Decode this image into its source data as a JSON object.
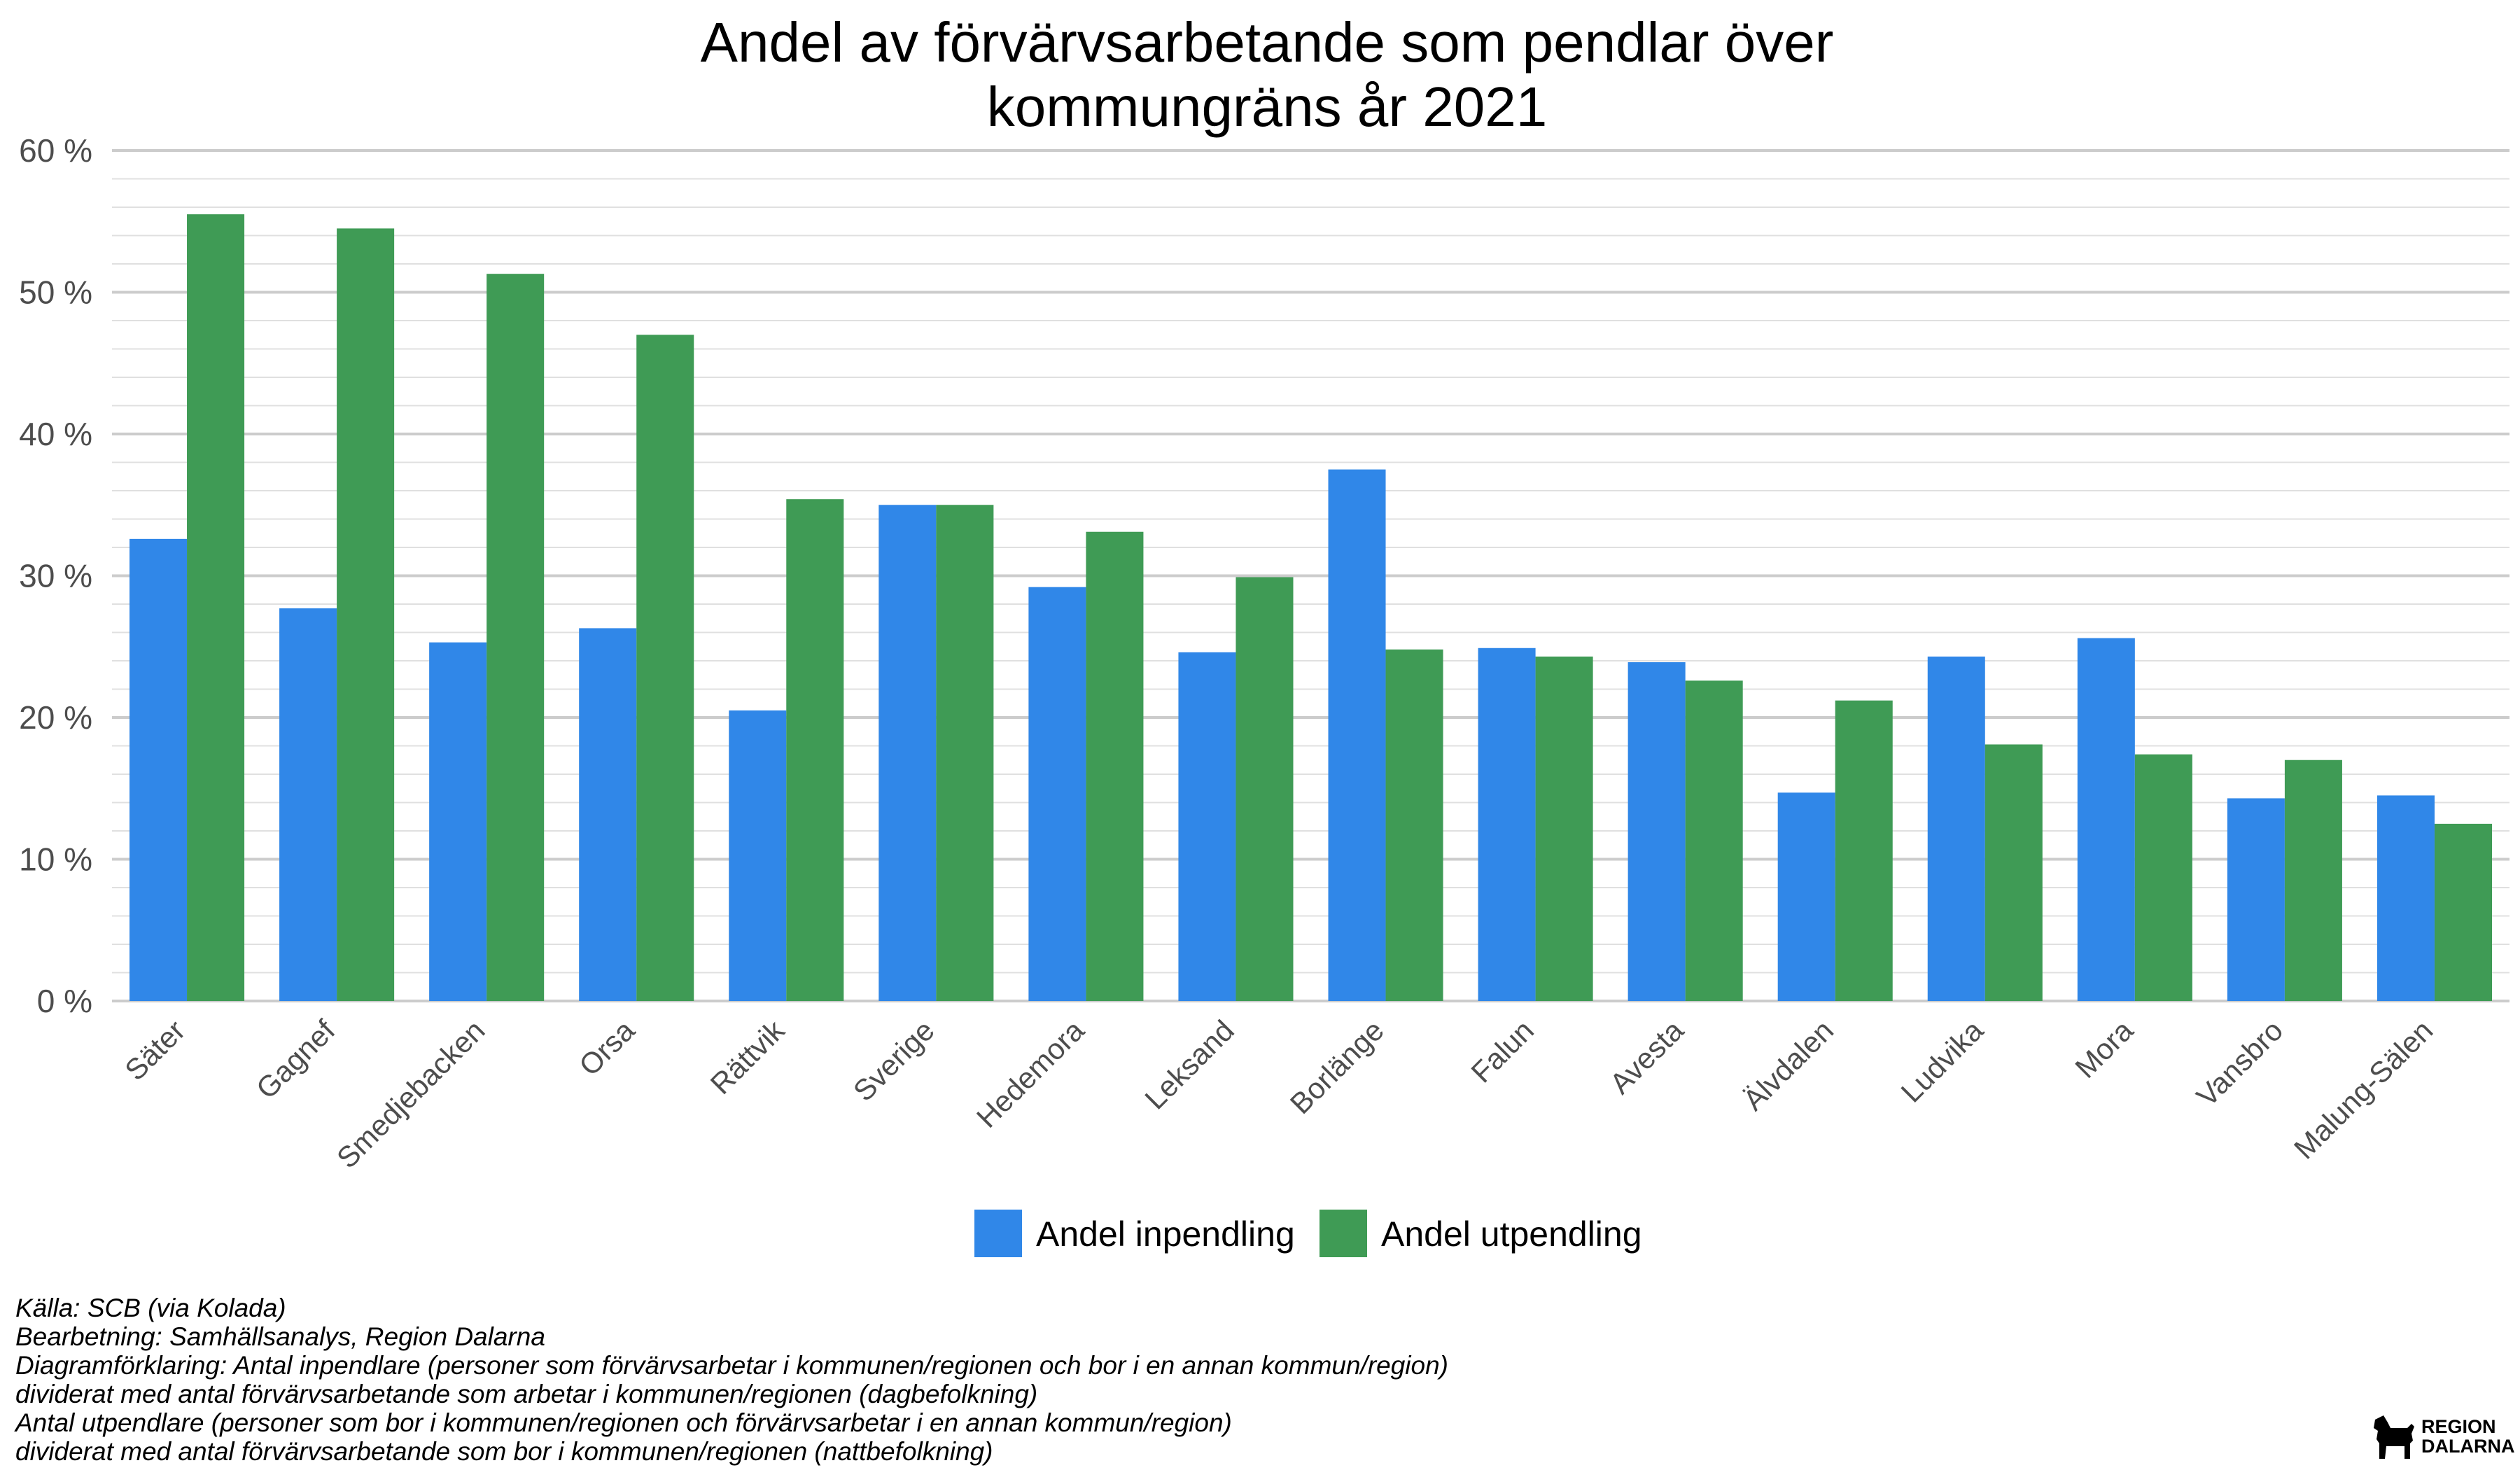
{
  "chart_data": {
    "type": "bar",
    "title_lines": [
      "Andel av förvärvsarbetande som pendlar över",
      "kommungräns år 2021"
    ],
    "xlabel": "",
    "ylabel": "",
    "ylim": [
      0,
      60
    ],
    "yticks": [
      0,
      10,
      20,
      30,
      40,
      50,
      60
    ],
    "ytick_labels": [
      "0 %",
      "10 %",
      "20 %",
      "30 %",
      "40 %",
      "50 %",
      "60 %"
    ],
    "grid": true,
    "legend_position": "bottom",
    "categories": [
      "Säter",
      "Gagnef",
      "Smedjebacken",
      "Orsa",
      "Rättvik",
      "Sverige",
      "Hedemora",
      "Leksand",
      "Borlänge",
      "Falun",
      "Avesta",
      "Älvdalen",
      "Ludvika",
      "Mora",
      "Vansbro",
      "Malung-Sälen"
    ],
    "series": [
      {
        "name": "Andel inpendling",
        "color": "#3087e8",
        "values": [
          32.6,
          27.7,
          25.3,
          26.3,
          20.5,
          35.0,
          29.2,
          24.6,
          37.5,
          24.9,
          23.9,
          14.7,
          24.3,
          25.6,
          14.3,
          14.5
        ]
      },
      {
        "name": "Andel utpendling",
        "color": "#3f9b55",
        "values": [
          55.5,
          54.5,
          51.3,
          47.0,
          35.4,
          35.0,
          33.1,
          29.9,
          24.8,
          24.3,
          22.6,
          21.2,
          18.1,
          17.4,
          17.0,
          12.5
        ]
      }
    ]
  },
  "caption": {
    "lines": [
      "Källa: SCB (via Kolada)",
      "Bearbetning: Samhällsanalys, Region Dalarna",
      "Diagramförklaring: Antal inpendlare (personer som förvärvsarbetar i kommunen/regionen och bor i en annan kommun/region)",
      "dividerat med antal förvärvsarbetande som arbetar i kommunen/regionen (dagbefolkning)",
      "Antal utpendlare (personer som bor i kommunen/regionen och förvärvsarbetar i en annan kommun/region)",
      "dividerat med antal förvärvsarbetande som bor i kommunen/regionen (nattbefolkning)"
    ]
  },
  "logo": {
    "line1": "REGION",
    "line2": "DALARNA",
    "icon": "dala-horse-icon"
  }
}
